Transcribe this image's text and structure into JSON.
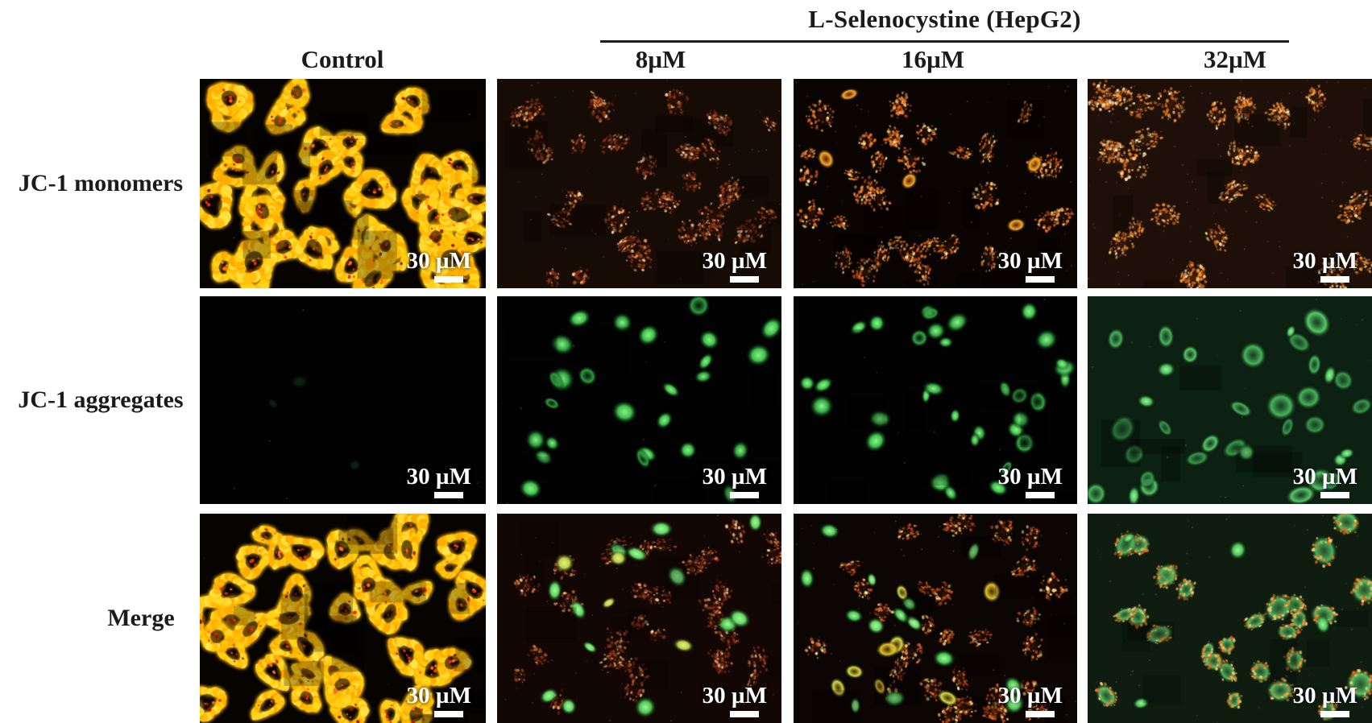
{
  "header": {
    "title": "L-Selenocystine (HepG2)"
  },
  "columns": [
    {
      "label": "Control"
    },
    {
      "label": "8µM"
    },
    {
      "label": "16µM"
    },
    {
      "label": "32µM"
    }
  ],
  "rows": [
    {
      "label": "JC-1 monomers"
    },
    {
      "label": "JC-1 aggregates"
    },
    {
      "label": "Merge"
    }
  ],
  "scalebar": {
    "label": "30 µM"
  },
  "colors": {
    "text": "#1b1b1b",
    "rule": "#1c1c1c",
    "scalebar": "#ffffff",
    "jc1_monomer_signal": "#ffc010",
    "jc1_aggregate_signal": "#3fc04c"
  },
  "panels": [
    {
      "name": "monomers-control",
      "row": 0,
      "col": 0,
      "bg": "#060301",
      "blocks": 14,
      "noise": 10,
      "populations": [
        {
          "style": "mito",
          "count": 52,
          "rmin": 15,
          "rmax": 27,
          "colors": [
            "#ffd820",
            "#ffc010",
            "#ffaa00",
            "#ffe54a"
          ],
          "speckle": [
            "#e03010",
            "#8f1a05",
            "#ff6a22"
          ],
          "glow": "#ffbb00"
        }
      ]
    },
    {
      "name": "monomers-8",
      "row": 0,
      "col": 1,
      "bg": "#170b06",
      "blocks": 10,
      "noise": 60,
      "populations": [
        {
          "style": "speck",
          "count": 40,
          "rmin": 10,
          "rmax": 19,
          "dots": 2.6,
          "colors": [
            "#8a3413",
            "#a03d18",
            "#71270d"
          ],
          "speckle": [
            "#ff9a4e",
            "#ffd9a0"
          ],
          "base": "rgba(120,40,16,0.22)"
        }
      ]
    },
    {
      "name": "monomers-16",
      "row": 0,
      "col": 2,
      "bg": "#0a0402",
      "blocks": 10,
      "noise": 70,
      "populations": [
        {
          "style": "speck",
          "count": 34,
          "rmin": 11,
          "rmax": 20,
          "dots": 2.6,
          "colors": [
            "#c84d15",
            "#e8681c",
            "#ff8f2a"
          ],
          "speckle": [
            "#ffc866",
            "#fff0a8"
          ],
          "base": "rgba(150,60,15,0.25)"
        },
        {
          "style": "ring",
          "count": 5,
          "rmin": 12,
          "rmax": 17,
          "colors": [
            "#ffb128"
          ],
          "inner": "rgba(200,90,20,0.4)"
        }
      ]
    },
    {
      "name": "monomers-32",
      "row": 0,
      "col": 3,
      "bg": "#1e1008",
      "blocks": 8,
      "noise": 110,
      "populations": [
        {
          "style": "speck",
          "count": 30,
          "rmin": 12,
          "rmax": 22,
          "dots": 3,
          "colors": [
            "#e2761f",
            "#ff942e",
            "#c85a14"
          ],
          "speckle": [
            "#ffd080",
            "#fff3c0"
          ],
          "base": "rgba(160,70,20,0.22)"
        }
      ]
    },
    {
      "name": "aggregates-control",
      "row": 1,
      "col": 0,
      "bg": "#020202",
      "blocks": 0,
      "noise": 6,
      "populations": [
        {
          "style": "blob",
          "count": 3,
          "rmin": 8,
          "rmax": 12,
          "alpha": 0.5,
          "colors": [
            "#12351a"
          ],
          "core": "#1a4a24"
        }
      ]
    },
    {
      "name": "aggregates-8",
      "row": 1,
      "col": 1,
      "bg": "#010201",
      "blocks": 8,
      "noise": 8,
      "populations": [
        {
          "style": "blob",
          "count": 21,
          "rmin": 10,
          "rmax": 17,
          "colors": [
            "#3fc04c",
            "#2f9e3e"
          ],
          "core": "#8af08a"
        },
        {
          "style": "ring",
          "count": 5,
          "rmin": 11,
          "rmax": 15,
          "colors": [
            "#2f9e3e"
          ],
          "inner": "rgba(30,90,40,0.3)"
        }
      ]
    },
    {
      "name": "aggregates-16",
      "row": 1,
      "col": 2,
      "bg": "#010201",
      "blocks": 8,
      "noise": 8,
      "populations": [
        {
          "style": "blob",
          "count": 28,
          "rmin": 9,
          "rmax": 16,
          "colors": [
            "#3fc04c",
            "#35a844"
          ],
          "core": "#90f590"
        },
        {
          "style": "ring",
          "count": 6,
          "rmin": 10,
          "rmax": 15,
          "colors": [
            "#37a846"
          ],
          "inner": "rgba(30,90,40,0.3)"
        }
      ]
    },
    {
      "name": "aggregates-32",
      "row": 1,
      "col": 3,
      "bg": "#0c2112",
      "blocks": 6,
      "noise": 20,
      "populations": [
        {
          "style": "ring",
          "count": 26,
          "rmin": 12,
          "rmax": 21,
          "colors": [
            "#48b75c",
            "#58cc6a",
            "#3a9a4e"
          ],
          "inner": "rgba(40,100,55,0.45)"
        },
        {
          "style": "blob",
          "count": 8,
          "rmin": 9,
          "rmax": 14,
          "colors": [
            "#4fc260"
          ],
          "core": "#9af59a"
        }
      ]
    },
    {
      "name": "merge-control",
      "row": 2,
      "col": 0,
      "bg": "#060301",
      "blocks": 14,
      "noise": 10,
      "populations": [
        {
          "style": "mito",
          "count": 52,
          "rmin": 15,
          "rmax": 27,
          "colors": [
            "#ffd820",
            "#ffc010",
            "#ffaa00",
            "#ffe54a"
          ],
          "speckle": [
            "#e03010",
            "#8f1a05",
            "#ff6a22"
          ],
          "glow": "#ffbb00"
        }
      ]
    },
    {
      "name": "merge-8",
      "row": 2,
      "col": 1,
      "bg": "#130705",
      "blocks": 10,
      "noise": 40,
      "populations": [
        {
          "style": "speck",
          "count": 34,
          "rmin": 10,
          "rmax": 18,
          "dots": 2.4,
          "colors": [
            "#8a3112",
            "#a13c16",
            "#6d250c"
          ],
          "speckle": [
            "#ff9a4e",
            "#ffcf90"
          ],
          "base": "rgba(115,40,16,0.22)"
        },
        {
          "style": "blob",
          "count": 13,
          "rmin": 10,
          "rmax": 16,
          "colors": [
            "#4cc754",
            "#63d964"
          ],
          "core": "#a5f79e"
        },
        {
          "style": "blob",
          "count": 4,
          "rmin": 10,
          "rmax": 14,
          "colors": [
            "#b9d44a"
          ],
          "core": "#e8f07a"
        }
      ]
    },
    {
      "name": "merge-16",
      "row": 2,
      "col": 2,
      "bg": "#0b0503",
      "blocks": 10,
      "noise": 50,
      "populations": [
        {
          "style": "speck",
          "count": 30,
          "rmin": 10,
          "rmax": 18,
          "dots": 2.6,
          "colors": [
            "#c04712",
            "#e2631a",
            "#a33a10"
          ],
          "speckle": [
            "#ffd070",
            "#fff0a0"
          ],
          "base": "rgba(150,60,15,0.25)"
        },
        {
          "style": "blob",
          "count": 14,
          "rmin": 9,
          "rmax": 15,
          "colors": [
            "#4cc754",
            "#6ad96a"
          ],
          "core": "#a8f7a0"
        },
        {
          "style": "ring",
          "count": 8,
          "rmin": 11,
          "rmax": 16,
          "colors": [
            "#e8c72e",
            "#d9e04e"
          ],
          "inner": "rgba(160,120,20,0.4)"
        }
      ]
    },
    {
      "name": "merge-32",
      "row": 2,
      "col": 3,
      "bg": "#0e1d0f",
      "blocks": 6,
      "noise": 40,
      "populations": [
        {
          "style": "ringspeck",
          "count": 28,
          "rmin": 12,
          "rmax": 21,
          "colors": [
            "#4ab45e",
            "#58c468"
          ],
          "inner": "rgba(60,130,70,0.5)",
          "speckle": [
            "#ff8c2a",
            "#e8641a",
            "#ffd07a"
          ]
        },
        {
          "style": "blob",
          "count": 4,
          "rmin": 9,
          "rmax": 13,
          "colors": [
            "#4fc75e"
          ],
          "core": "#98f598"
        }
      ]
    }
  ]
}
